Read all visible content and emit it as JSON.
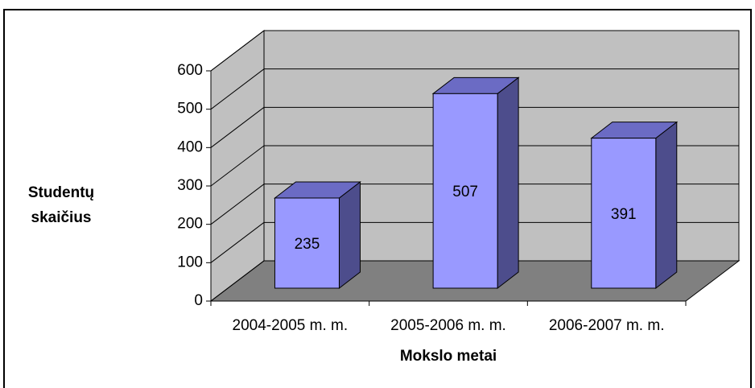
{
  "chart_data": {
    "type": "bar3d",
    "x_label": "Mokslo metai",
    "y_label": "Studentų skaičius",
    "categories": [
      "2004-2005 m. m.",
      "2005-2006 m. m.",
      "2006-2007 m. m."
    ],
    "values": [
      235,
      507,
      391
    ],
    "color": "#9999ff",
    "ylim": [
      0,
      600
    ],
    "yticks": [
      0,
      100,
      200,
      300,
      400,
      500,
      600
    ],
    "grid": true
  }
}
